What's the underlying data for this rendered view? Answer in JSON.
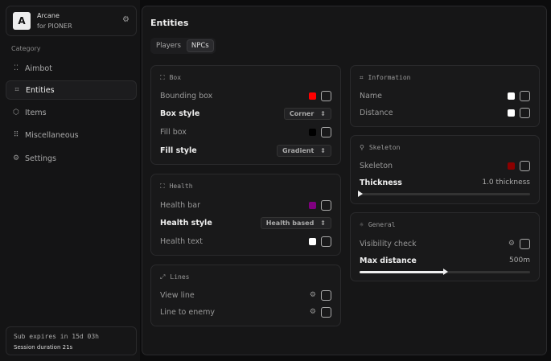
{
  "brand": {
    "logo": "A",
    "name": "Arcane",
    "subtitle": "for PIONER",
    "icon": "gear-icon"
  },
  "sidebar": {
    "category_label": "Category",
    "items": [
      {
        "label": "Aimbot",
        "icon": "crosshair-icon",
        "active": false
      },
      {
        "label": "Entities",
        "icon": "scan-face-icon",
        "active": true
      },
      {
        "label": "Items",
        "icon": "box-icon",
        "active": false
      },
      {
        "label": "Miscellaneous",
        "icon": "grid-icon",
        "active": false
      },
      {
        "label": "Settings",
        "icon": "gear-icon",
        "active": false
      }
    ]
  },
  "subscription": {
    "expires": "Sub expires in 15d 03h",
    "session": "Session duration 21s"
  },
  "main": {
    "title": "Entities",
    "tabs": [
      {
        "label": "Players",
        "active": false
      },
      {
        "label": "NPCs",
        "active": true
      }
    ]
  },
  "box": {
    "title": "Box",
    "bounding_box": "Bounding box",
    "bounding_color": "#ff0000",
    "box_style": "Box style",
    "box_style_value": "Corner",
    "fill_box": "Fill box",
    "fill_color": "#000000",
    "fill_style": "Fill style",
    "fill_style_value": "Gradient"
  },
  "health": {
    "title": "Health",
    "health_bar": "Health bar",
    "bar_color": "#800080",
    "health_style": "Health style",
    "health_style_value": "Health based",
    "health_text": "Health text",
    "text_color": "#ffffff"
  },
  "lines": {
    "title": "Lines",
    "view_line": "View line",
    "line_to_enemy": "Line to enemy"
  },
  "information": {
    "title": "Information",
    "name": "Name",
    "name_color": "#ffffff",
    "distance": "Distance",
    "distance_color": "#ffffff"
  },
  "skeleton": {
    "title": "Skeleton",
    "skeleton": "Skeleton",
    "skeleton_color": "#8b0000",
    "thickness": "Thickness",
    "thickness_value": "1.0 thickness",
    "thickness_fraction": 0.0
  },
  "general": {
    "title": "General",
    "visibility_check": "Visibility check",
    "max_distance": "Max distance",
    "max_distance_value": "500m",
    "max_distance_fraction": 0.5
  }
}
